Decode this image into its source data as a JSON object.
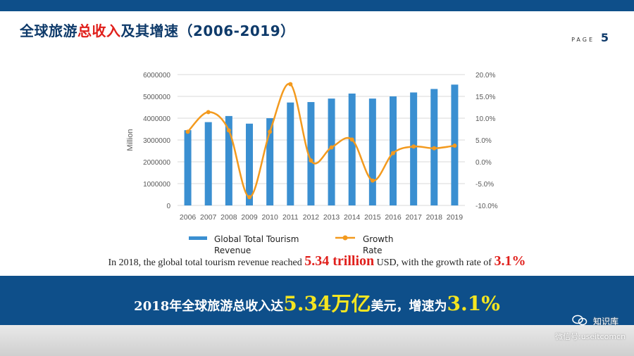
{
  "header": {
    "title_part1": "全球旅游",
    "title_highlight": "总收入",
    "title_part2": "及其增速（2006-2019）",
    "page_label": "PAGE",
    "page_number": "5"
  },
  "chart_data": {
    "type": "bar+line",
    "categories": [
      "2006",
      "2007",
      "2008",
      "2009",
      "2010",
      "2011",
      "2012",
      "2013",
      "2014",
      "2015",
      "2016",
      "2017",
      "2018",
      "2019"
    ],
    "series": [
      {
        "name": "Global Total Tourism Revenue",
        "type": "bar",
        "axis": "left",
        "values": [
          3450000,
          3820000,
          4100000,
          3750000,
          4000000,
          4720000,
          4740000,
          4900000,
          5130000,
          4900000,
          5000000,
          5180000,
          5340000,
          5540000
        ]
      },
      {
        "name": "Growth Rate",
        "type": "line",
        "axis": "right",
        "values": [
          6.9,
          11.4,
          7.2,
          -8.1,
          6.9,
          17.8,
          0.3,
          3.3,
          5.1,
          -4.3,
          2.0,
          3.5,
          3.1,
          3.7
        ]
      }
    ],
    "ylabel": "Million",
    "ylim": [
      0,
      6000000
    ],
    "yticks": [
      "0",
      "1000000",
      "2000000",
      "3000000",
      "4000000",
      "5000000",
      "6000000"
    ],
    "y2lim": [
      -10,
      20
    ],
    "y2ticks": [
      "-10.0%",
      "-5.0%",
      "0.0%",
      "5.0%",
      "10.0%",
      "15.0%",
      "20.0%"
    ],
    "legend": {
      "position": "bottom",
      "items": [
        "Global Total Tourism Revenue",
        "Growth Rate"
      ]
    },
    "colors": {
      "bar": "#3a8fd1",
      "line": "#f39a1e"
    }
  },
  "caption": {
    "prefix": "In 2018, the global total tourism revenue reached ",
    "amount": "5.34 trillion",
    "middle": " USD, with the growth rate of ",
    "rate": "3.1%"
  },
  "banner": {
    "prefix": "2018年全球旅游总收入达",
    "amount": "5.34万亿",
    "middle": "美元，增速为",
    "rate": "3.1%"
  },
  "watermark": {
    "name": "知识库",
    "account": "微信号:useitcomcn"
  }
}
